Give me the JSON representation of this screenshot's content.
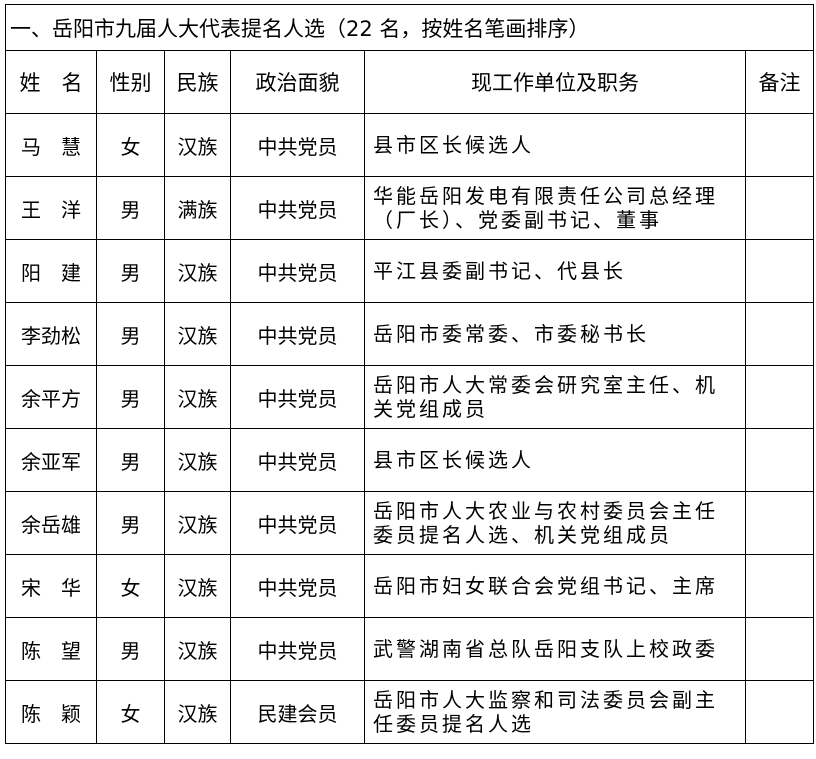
{
  "title": "一、岳阳市九届人大代表提名人选（22 名，按姓名笔画排序）",
  "headers": [
    "姓　名",
    "性别",
    "民族",
    "政治面貌",
    "现工作单位及职务",
    "备注"
  ],
  "rows": [
    {
      "name": "马　慧",
      "gender": "女",
      "ethnicity": "汉族",
      "party": "中共党员",
      "duty": "县市区长候选人",
      "note": ""
    },
    {
      "name": "王　洋",
      "gender": "男",
      "ethnicity": "满族",
      "party": "中共党员",
      "duty": "华能岳阳发电有限责任公司总经理（厂长）、党委副书记、董事",
      "note": ""
    },
    {
      "name": "阳　建",
      "gender": "男",
      "ethnicity": "汉族",
      "party": "中共党员",
      "duty": "平江县委副书记、代县长",
      "note": ""
    },
    {
      "name": "李劲松",
      "gender": "男",
      "ethnicity": "汉族",
      "party": "中共党员",
      "duty": "岳阳市委常委、市委秘书长",
      "note": ""
    },
    {
      "name": "余平方",
      "gender": "男",
      "ethnicity": "汉族",
      "party": "中共党员",
      "duty": "岳阳市人大常委会研究室主任、机关党组成员",
      "note": ""
    },
    {
      "name": "余亚军",
      "gender": "男",
      "ethnicity": "汉族",
      "party": "中共党员",
      "duty": "县市区长候选人",
      "note": ""
    },
    {
      "name": "余岳雄",
      "gender": "男",
      "ethnicity": "汉族",
      "party": "中共党员",
      "duty": "岳阳市人大农业与农村委员会主任委员提名人选、机关党组成员",
      "note": ""
    },
    {
      "name": "宋　华",
      "gender": "女",
      "ethnicity": "汉族",
      "party": "中共党员",
      "duty": "岳阳市妇女联合会党组书记、主席",
      "note": ""
    },
    {
      "name": "陈　望",
      "gender": "男",
      "ethnicity": "汉族",
      "party": "中共党员",
      "duty": "武警湖南省总队岳阳支队上校政委",
      "note": ""
    },
    {
      "name": "陈　颖",
      "gender": "女",
      "ethnicity": "汉族",
      "party": "民建会员",
      "duty": "岳阳市人大监察和司法委员会副主任委员提名人选",
      "note": ""
    }
  ]
}
